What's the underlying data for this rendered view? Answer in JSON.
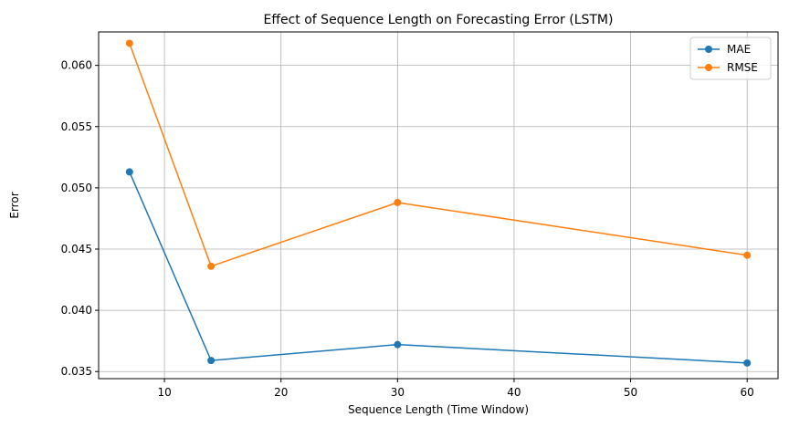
{
  "chart_data": {
    "type": "line",
    "title": "Effect of Sequence Length on Forecasting Error (LSTM)",
    "xlabel": "Sequence Length (Time Window)",
    "ylabel": "Error",
    "x": [
      7,
      14,
      30,
      60
    ],
    "xlim": [
      4.35,
      62.65
    ],
    "ylim": [
      0.03442,
      0.06273
    ],
    "xticks": [
      10,
      20,
      30,
      40,
      50,
      60
    ],
    "yticks": [
      0.035,
      0.04,
      0.045,
      0.05,
      0.055,
      0.06
    ],
    "ytick_labels": [
      "0.035",
      "0.040",
      "0.045",
      "0.050",
      "0.055",
      "0.060"
    ],
    "grid": true,
    "legend_position": "top-right",
    "series": [
      {
        "name": "MAE",
        "color": "#1f77b4",
        "values": [
          0.0513,
          0.0359,
          0.0372,
          0.0357
        ]
      },
      {
        "name": "RMSE",
        "color": "#ff7f0e",
        "values": [
          0.0618,
          0.0436,
          0.0488,
          0.0445
        ]
      }
    ]
  }
}
